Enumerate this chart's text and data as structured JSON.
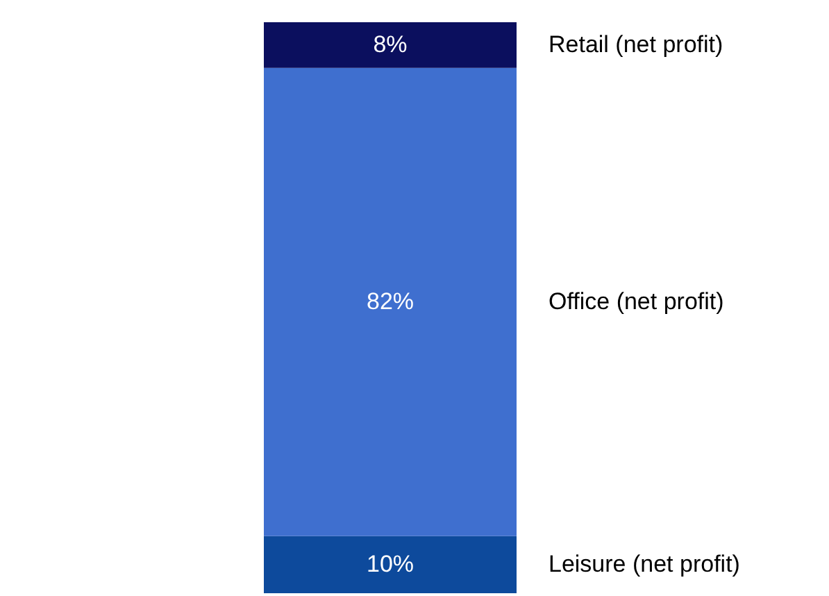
{
  "chart_data": {
    "type": "bar",
    "stacked": true,
    "categories": [
      null
    ],
    "series": [
      {
        "name": "Leisure (net profit)",
        "color": "#0d4a9c",
        "values": [
          10
        ],
        "value_labels": [
          "10%"
        ]
      },
      {
        "name": "Office (net profit)",
        "color": "#3f6fcf",
        "values": [
          82
        ],
        "value_labels": [
          "82%"
        ]
      },
      {
        "name": "Retail (net profit)",
        "color": "#0b0f5e",
        "values": [
          8
        ],
        "value_labels": [
          "8%"
        ]
      }
    ]
  }
}
